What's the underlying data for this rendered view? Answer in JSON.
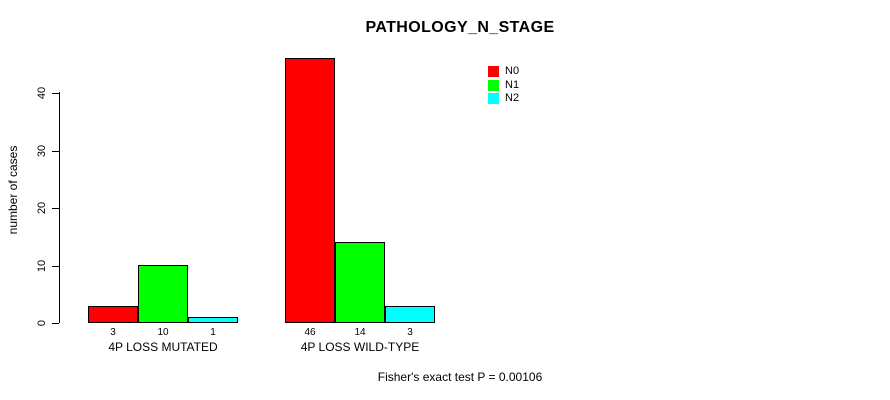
{
  "chart_data": {
    "type": "bar",
    "title": "PATHOLOGY_N_STAGE",
    "xlabel": "",
    "ylabel": "number of cases",
    "categories": [
      "4P LOSS MUTATED",
      "4P LOSS WILD-TYPE"
    ],
    "series": [
      {
        "name": "N0",
        "color": "#ff0000",
        "values": [
          3,
          46
        ]
      },
      {
        "name": "N1",
        "color": "#00ff00",
        "values": [
          10,
          14
        ]
      },
      {
        "name": "N2",
        "color": "#00ffff",
        "values": [
          1,
          3
        ]
      }
    ],
    "yticks": [
      0,
      10,
      20,
      30,
      40
    ],
    "ylim": [
      0,
      46
    ],
    "bar_value_labels": [
      [
        "3",
        "10",
        "1"
      ],
      [
        "46",
        "14",
        "3"
      ]
    ],
    "grid": false,
    "legend_position": "top-right",
    "annotation": "Fisher's exact test P = 0.00106"
  }
}
